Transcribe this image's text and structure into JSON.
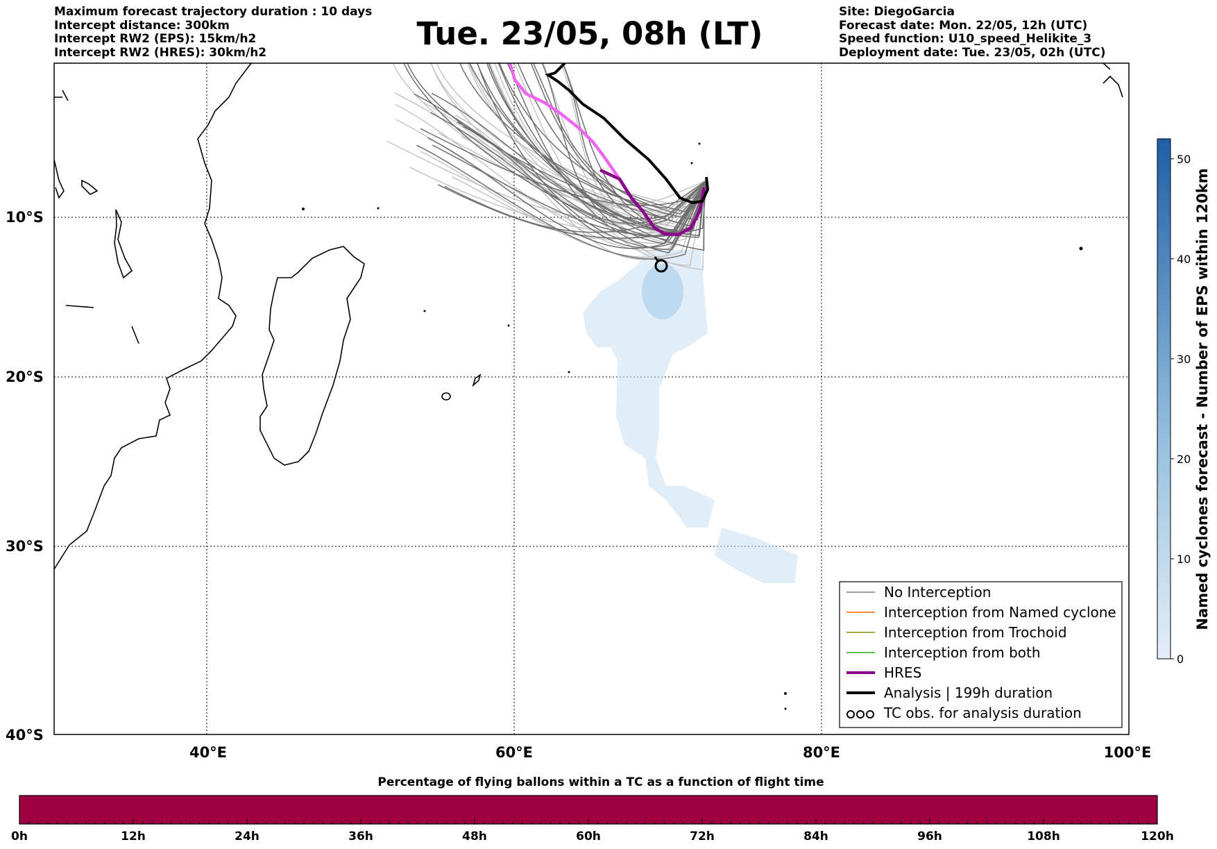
{
  "header": {
    "left_lines": [
      "Maximum forecast trajectory duration : 10 days",
      "Intercept distance: 300km",
      "Intercept RW2 (EPS):  15km/h2",
      "Intercept RW2 (HRES): 30km/h2"
    ],
    "title": "Tue. 23/05, 08h (LT)",
    "right_lines": [
      "Site: DiegoGarcia",
      "Forecast date: Mon. 22/05, 12h (UTC)",
      "Speed function: U10_speed_Helikite_3",
      "Deployment date: Tue. 23/05, 02h (UTC)"
    ]
  },
  "map": {
    "lat_labels": [
      "10°S",
      "20°S",
      "30°S",
      "40°S"
    ],
    "lon_labels": [
      "40°E",
      "60°E",
      "80°E",
      "100°E"
    ],
    "grid": "dotted",
    "lon_range": [
      30,
      100
    ],
    "lat_range": [
      -40,
      0
    ]
  },
  "legend": {
    "items": [
      {
        "label": "No Interception",
        "color": "#808080",
        "style": "thin"
      },
      {
        "label": "Interception from Named cyclone",
        "color": "#ff6600",
        "style": "thin"
      },
      {
        "label": "Interception from Trochoid",
        "color": "#8b8b00",
        "style": "thin"
      },
      {
        "label": "Interception from both",
        "color": "#22aa22",
        "style": "thin"
      },
      {
        "label": "HRES",
        "color": "#8b008b",
        "style": "thick"
      },
      {
        "label": "Analysis | 199h duration",
        "color": "#000000",
        "style": "thick"
      },
      {
        "label": "TC obs. for analysis duration",
        "color": "#000000",
        "style": "symbol"
      }
    ]
  },
  "colorbar": {
    "label": "Named cyclones forecast - Number of EPS within 120km",
    "ticks": [
      "0",
      "10",
      "20",
      "30",
      "40",
      "50"
    ],
    "colors": [
      "#e4eef8",
      "#1f5fa6"
    ]
  },
  "bottom_bar": {
    "title": "Percentage of flying ballons within a TC as a function of flight time",
    "ticks": [
      "0h",
      "12h",
      "24h",
      "36h",
      "48h",
      "60h",
      "72h",
      "84h",
      "96h",
      "108h",
      "120h"
    ],
    "fill_color": "#9e0040"
  }
}
